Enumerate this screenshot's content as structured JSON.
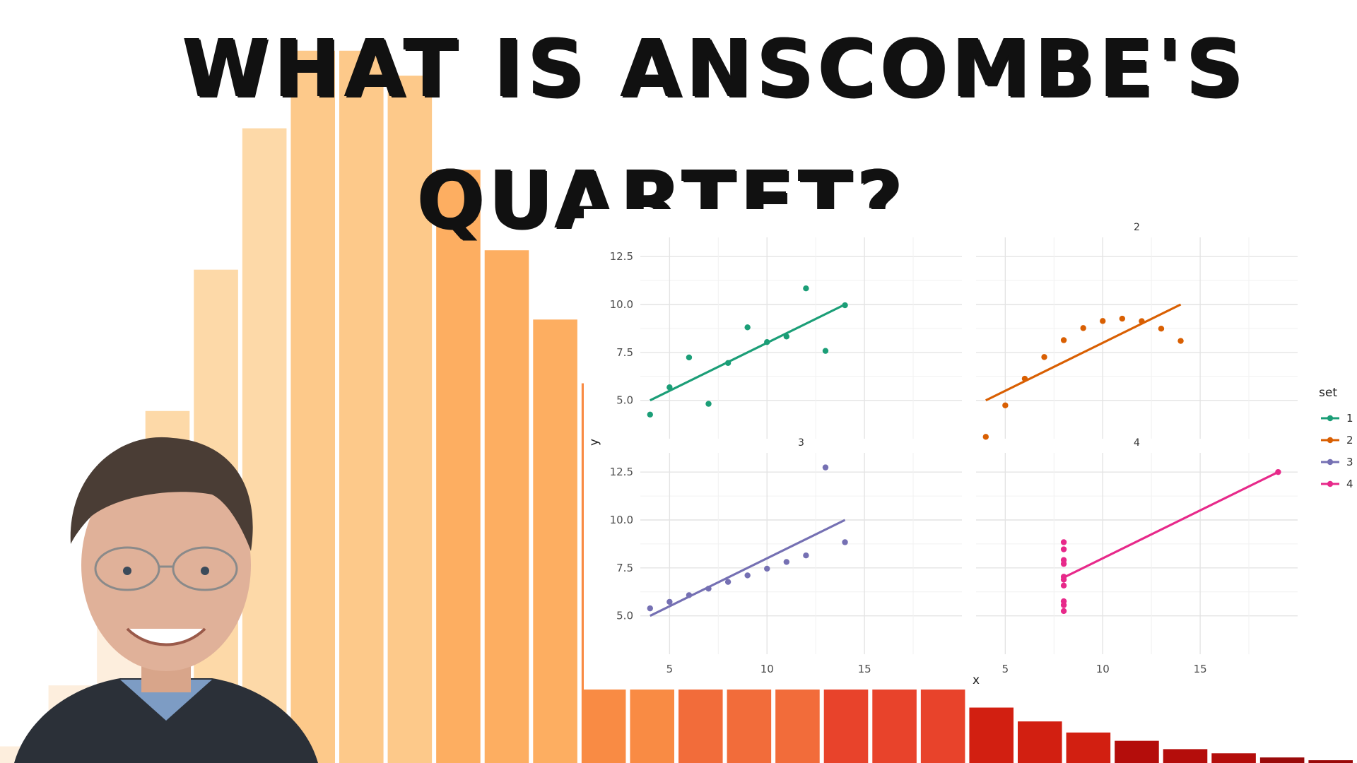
{
  "title": {
    "line1": "WHAT IS ANSCOMBE'S",
    "line2": "QUARTET?"
  },
  "colors": {
    "bar_gradient": [
      "#fdeedd",
      "#fdd9a8",
      "#fdc98a",
      "#fdae61",
      "#f98b44",
      "#f26c3a",
      "#e8432b",
      "#d21f11",
      "#b40d0b",
      "#9a0a0a"
    ],
    "set1": "#1b9e77",
    "set2": "#d95f02",
    "set3": "#7570b3",
    "set4": "#e7298a"
  },
  "photo": {
    "icon": "person-portrait-icon"
  },
  "chart_data": [
    {
      "type": "bar",
      "role": "decorative background histogram",
      "values": [
        0.6,
        2.8,
        5.1,
        12.7,
        17.8,
        22.9,
        25.7,
        25.7,
        24.8,
        21.4,
        18.5,
        16.0,
        13.7,
        11.8,
        10.2,
        8.7,
        7.3,
        6.0,
        4.9,
        3.9,
        2.0,
        1.5,
        1.1,
        0.8,
        0.5,
        0.35,
        0.2,
        0.1
      ],
      "ylim": [
        0,
        26
      ]
    },
    {
      "type": "scatter",
      "xlabel": "x",
      "ylabel": "y",
      "xticks": [
        "5",
        "10",
        "15"
      ],
      "yticks": [
        "5.0",
        "7.5",
        "10.0",
        "12.5"
      ],
      "xlim": [
        3.5,
        20
      ],
      "ylim": [
        3,
        13.5
      ],
      "legend": {
        "title": "set",
        "position": "right",
        "entries": [
          "1",
          "2",
          "3",
          "4"
        ]
      },
      "facets": [
        {
          "label": "1",
          "show_label": false,
          "x": [
            10,
            8,
            13,
            9,
            11,
            14,
            6,
            4,
            12,
            7,
            5
          ],
          "y": [
            8.04,
            6.95,
            7.58,
            8.81,
            8.33,
            9.96,
            7.24,
            4.26,
            10.84,
            4.82,
            5.68
          ],
          "fit": [
            [
              4,
              5.0
            ],
            [
              14,
              10.0
            ]
          ]
        },
        {
          "label": "2",
          "show_label": true,
          "x": [
            10,
            8,
            13,
            9,
            11,
            14,
            6,
            4,
            12,
            7,
            5
          ],
          "y": [
            9.14,
            8.14,
            8.74,
            8.77,
            9.26,
            8.1,
            6.13,
            3.1,
            9.13,
            7.26,
            4.74
          ],
          "fit": [
            [
              4,
              5.0
            ],
            [
              14,
              10.0
            ]
          ]
        },
        {
          "label": "3",
          "show_label": true,
          "x": [
            10,
            8,
            13,
            9,
            11,
            14,
            6,
            4,
            12,
            7,
            5
          ],
          "y": [
            7.46,
            6.77,
            12.74,
            7.11,
            7.81,
            8.84,
            6.08,
            5.39,
            8.15,
            6.42,
            5.73
          ],
          "fit": [
            [
              4,
              5.0
            ],
            [
              14,
              10.0
            ]
          ]
        },
        {
          "label": "4",
          "show_label": true,
          "x": [
            8,
            8,
            8,
            8,
            8,
            8,
            8,
            19,
            8,
            8,
            8
          ],
          "y": [
            6.58,
            5.76,
            7.71,
            8.84,
            8.47,
            7.04,
            5.25,
            12.5,
            5.56,
            7.91,
            6.89
          ],
          "fit": [
            [
              8,
              7.0
            ],
            [
              19,
              12.5
            ]
          ]
        }
      ]
    }
  ]
}
